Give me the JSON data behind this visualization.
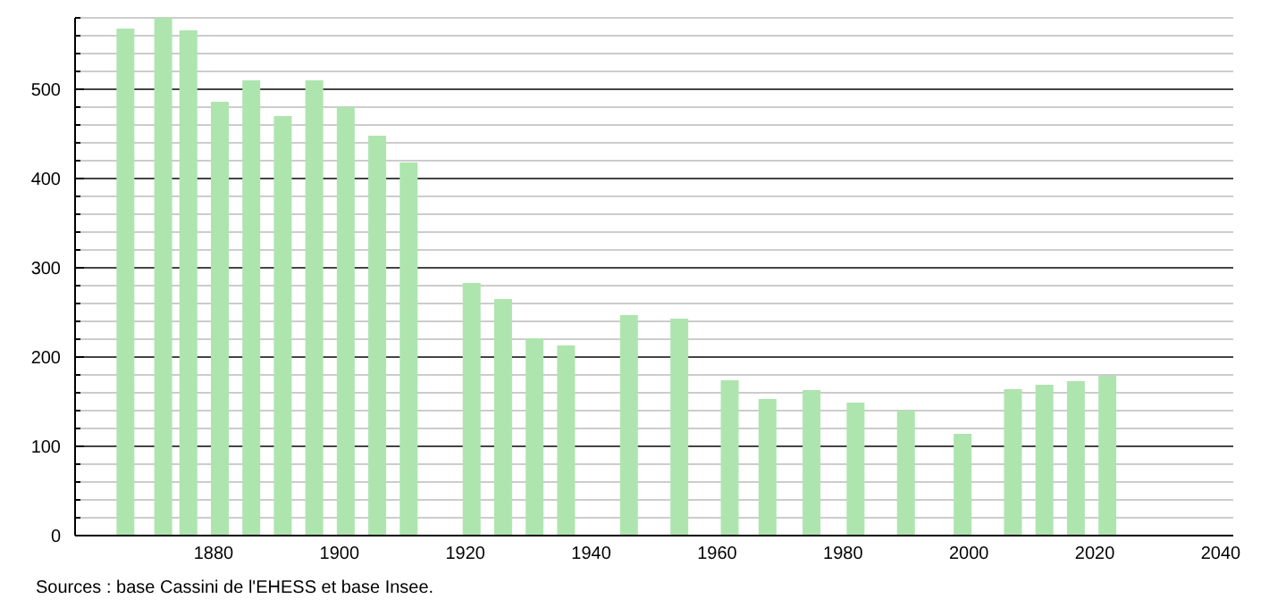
{
  "chart_data": {
    "type": "bar",
    "x": [
      1866,
      1872,
      1876,
      1881,
      1886,
      1891,
      1896,
      1901,
      1906,
      1911,
      1921,
      1926,
      1931,
      1936,
      1946,
      1954,
      1962,
      1968,
      1975,
      1982,
      1990,
      1999,
      2007,
      2012,
      2017,
      2022
    ],
    "values": [
      568,
      580,
      566,
      486,
      510,
      470,
      510,
      480,
      448,
      418,
      283,
      265,
      221,
      213,
      247,
      243,
      174,
      153,
      163,
      149,
      140,
      114,
      164,
      169,
      173,
      179
    ],
    "color": "#aee5ae",
    "xlim": [
      1858,
      2042
    ],
    "xticks": [
      1880,
      1900,
      1920,
      1940,
      1960,
      1980,
      2000,
      2020,
      2040
    ],
    "ylim": [
      0,
      580
    ],
    "yticks": [
      0,
      {
        "value": 20,
        "label": null
      },
      {
        "value": 40,
        "label": null
      },
      {
        "value": 60,
        "label": null
      },
      {
        "value": 80,
        "label": null
      },
      100,
      {
        "value": 120,
        "label": null
      },
      {
        "value": 140,
        "label": null
      },
      {
        "value": 160,
        "label": null
      },
      {
        "value": 180,
        "label": null
      },
      200,
      {
        "value": 220,
        "label": null
      },
      {
        "value": 240,
        "label": null
      },
      {
        "value": 260,
        "label": null
      },
      {
        "value": 280,
        "label": null
      },
      300,
      {
        "value": 320,
        "label": null
      },
      {
        "value": 340,
        "label": null
      },
      {
        "value": 360,
        "label": null
      },
      {
        "value": 380,
        "label": null
      },
      400,
      {
        "value": 420,
        "label": null
      },
      {
        "value": 440,
        "label": null
      },
      {
        "value": 460,
        "label": null
      },
      {
        "value": 480,
        "label": null
      },
      500,
      {
        "value": 520,
        "label": null
      },
      {
        "value": 540,
        "label": null
      },
      {
        "value": 560,
        "label": null
      },
      {
        "value": 580,
        "label": null
      }
    ],
    "grid": "y",
    "annotations": [
      "Sources : base Cassini de l'EHESS et base Insee."
    ]
  }
}
